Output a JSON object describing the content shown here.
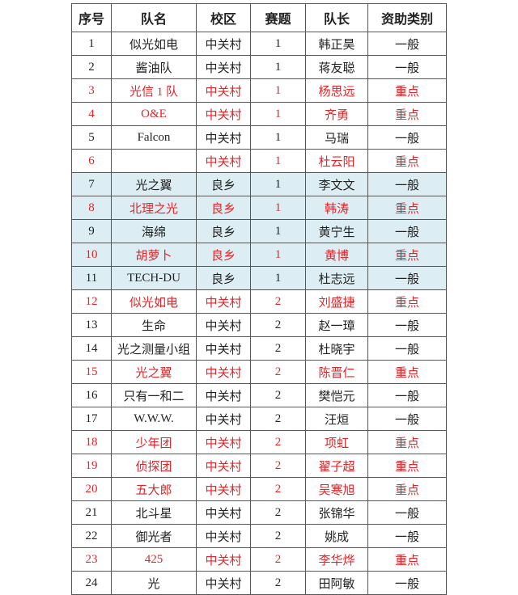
{
  "headers": [
    "序号",
    "队名",
    "校区",
    "赛题",
    "队长",
    "资助类别"
  ],
  "colors": {
    "highlight_text": "#e0262a",
    "highlight_bg": "#dcedf3"
  },
  "rows": [
    {
      "cells": [
        "1",
        "似光如电",
        "中关村",
        "1",
        "韩正昊",
        "一般"
      ],
      "red": false,
      "shaded": false
    },
    {
      "cells": [
        "2",
        "酱油队",
        "中关村",
        "1",
        "蒋友聪",
        "一般"
      ],
      "red": false,
      "shaded": false
    },
    {
      "cells": [
        "3",
        "光信 1 队",
        "中关村",
        "1",
        "杨思远",
        "重点"
      ],
      "red": true,
      "shaded": false
    },
    {
      "cells": [
        "4",
        "O&E",
        "中关村",
        "1",
        "齐勇",
        "重点"
      ],
      "red": true,
      "shaded": false
    },
    {
      "cells": [
        "5",
        "Falcon",
        "中关村",
        "1",
        "马瑞",
        "一般"
      ],
      "red": false,
      "shaded": false
    },
    {
      "cells": [
        "6",
        "",
        "中关村",
        "1",
        "杜云阳",
        "重点"
      ],
      "red": true,
      "shaded": false
    },
    {
      "cells": [
        "7",
        "光之翼",
        "良乡",
        "1",
        "李文文",
        "一般"
      ],
      "red": false,
      "shaded": true
    },
    {
      "cells": [
        "8",
        "北理之光",
        "良乡",
        "1",
        "韩涛",
        "重点"
      ],
      "red": true,
      "shaded": true
    },
    {
      "cells": [
        "9",
        "海绵",
        "良乡",
        "1",
        "黄宁生",
        "一般"
      ],
      "red": false,
      "shaded": true
    },
    {
      "cells": [
        "10",
        "胡萝卜",
        "良乡",
        "1",
        "黄博",
        "重点"
      ],
      "red": true,
      "shaded": true
    },
    {
      "cells": [
        "11",
        "TECH-DU",
        "良乡",
        "1",
        "杜志远",
        "一般"
      ],
      "red": false,
      "shaded": true
    },
    {
      "cells": [
        "12",
        "似光如电",
        "中关村",
        "2",
        "刘盛捷",
        "重点"
      ],
      "red": true,
      "shaded": false
    },
    {
      "cells": [
        "13",
        "生命",
        "中关村",
        "2",
        "赵一璋",
        "一般"
      ],
      "red": false,
      "shaded": false
    },
    {
      "cells": [
        "14",
        "光之测量小组",
        "中关村",
        "2",
        "杜晓宇",
        "一般"
      ],
      "red": false,
      "shaded": false
    },
    {
      "cells": [
        "15",
        "光之翼",
        "中关村",
        "2",
        "陈晋仁",
        "重点"
      ],
      "red": true,
      "shaded": false
    },
    {
      "cells": [
        "16",
        "只有一和二",
        "中关村",
        "2",
        "樊恺元",
        "一般"
      ],
      "red": false,
      "shaded": false
    },
    {
      "cells": [
        "17",
        "W.W.W.",
        "中关村",
        "2",
        "汪烜",
        "一般"
      ],
      "red": false,
      "shaded": false
    },
    {
      "cells": [
        "18",
        "少年团",
        "中关村",
        "2",
        "项虹",
        "重点"
      ],
      "red": true,
      "shaded": false
    },
    {
      "cells": [
        "19",
        "侦探团",
        "中关村",
        "2",
        "翟子超",
        "重点"
      ],
      "red": true,
      "shaded": false
    },
    {
      "cells": [
        "20",
        "五大郎",
        "中关村",
        "2",
        "吴寒旭",
        "重点"
      ],
      "red": true,
      "shaded": false
    },
    {
      "cells": [
        "21",
        "北斗星",
        "中关村",
        "2",
        "张锦华",
        "一般"
      ],
      "red": false,
      "shaded": false
    },
    {
      "cells": [
        "22",
        "御光者",
        "中关村",
        "2",
        "姚成",
        "一般"
      ],
      "red": false,
      "shaded": false
    },
    {
      "cells": [
        "23",
        "425",
        "中关村",
        "2",
        "李华烨",
        "重点"
      ],
      "red": true,
      "shaded": false
    },
    {
      "cells": [
        "24",
        "光",
        "中关村",
        "2",
        "田阿敏",
        "一般"
      ],
      "red": false,
      "shaded": false
    }
  ]
}
